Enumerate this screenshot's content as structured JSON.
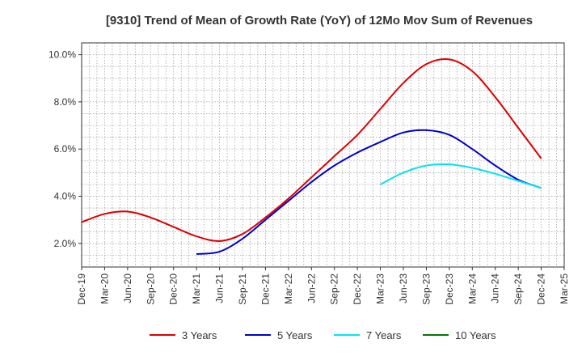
{
  "chart_data": {
    "type": "line",
    "title": "[9310]  Trend of Mean of Growth Rate (YoY) of 12Mo Mov Sum of Revenues",
    "xlabel": "",
    "ylabel": "",
    "ylim": [
      1.0,
      10.5
    ],
    "y_ticks": [
      2.0,
      4.0,
      6.0,
      8.0,
      10.0
    ],
    "y_tick_labels": [
      "2.0%",
      "4.0%",
      "6.0%",
      "8.0%",
      "10.0%"
    ],
    "categories": [
      "Dec-19",
      "Mar-20",
      "Jun-20",
      "Sep-20",
      "Dec-20",
      "Mar-21",
      "Jun-21",
      "Sep-21",
      "Dec-21",
      "Mar-22",
      "Jun-22",
      "Sep-22",
      "Dec-22",
      "Mar-23",
      "Jun-23",
      "Sep-23",
      "Dec-23",
      "Mar-24",
      "Jun-24",
      "Sep-24",
      "Dec-24",
      "Mar-25"
    ],
    "grid": true,
    "legend_position": "bottom",
    "series": [
      {
        "name": "3 Years",
        "color": "#dd0000",
        "values": [
          2.9,
          3.25,
          3.35,
          3.1,
          2.7,
          2.3,
          2.1,
          2.4,
          3.1,
          3.9,
          4.8,
          5.7,
          6.6,
          7.7,
          8.8,
          9.6,
          9.8,
          9.3,
          8.2,
          6.9,
          5.6,
          null
        ]
      },
      {
        "name": "5 Years",
        "color": "#0000cc",
        "values": [
          null,
          null,
          null,
          null,
          null,
          1.55,
          1.65,
          2.2,
          3.0,
          3.8,
          4.6,
          5.3,
          5.85,
          6.3,
          6.7,
          6.8,
          6.6,
          6.0,
          5.3,
          4.7,
          4.35,
          null
        ]
      },
      {
        "name": "7 Years",
        "color": "#00e5ee",
        "values": [
          null,
          null,
          null,
          null,
          null,
          null,
          null,
          null,
          null,
          null,
          null,
          null,
          null,
          4.5,
          5.0,
          5.3,
          5.35,
          5.2,
          4.95,
          4.65,
          4.35,
          null
        ]
      },
      {
        "name": "10 Years",
        "color": "#007700",
        "values": [
          null,
          null,
          null,
          null,
          null,
          null,
          null,
          null,
          null,
          null,
          null,
          null,
          null,
          null,
          null,
          null,
          null,
          null,
          null,
          null,
          null,
          null
        ]
      }
    ]
  }
}
